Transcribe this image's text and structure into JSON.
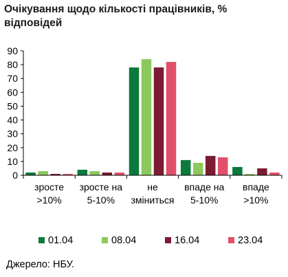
{
  "chart_data": {
    "type": "bar",
    "title": "Очікування щодо кількості працівників, % відповідей",
    "categories": [
      [
        "зросте",
        ">10%"
      ],
      [
        "зросте на",
        "5-10%"
      ],
      [
        "не",
        "зміниться"
      ],
      [
        "впаде на",
        "5-10%"
      ],
      [
        "впаде",
        ">10%"
      ]
    ],
    "series": [
      {
        "name": "01.04",
        "color": "#0b7a3b",
        "values": [
          2,
          4,
          78,
          11,
          6
        ]
      },
      {
        "name": "08.04",
        "color": "#8cc95c",
        "values": [
          3,
          3,
          84,
          9,
          1
        ]
      },
      {
        "name": "16.04",
        "color": "#7b1c33",
        "values": [
          1,
          2,
          78,
          14,
          5
        ]
      },
      {
        "name": "23.04",
        "color": "#e24f6b",
        "values": [
          1,
          2,
          82,
          13,
          2
        ]
      }
    ],
    "ylim": [
      0,
      90
    ],
    "yticks": [
      "0",
      "10",
      "20",
      "30",
      "40",
      "50",
      "60",
      "70",
      "80",
      "90"
    ],
    "xlabel": "",
    "ylabel": "",
    "grid": false,
    "legend_position": "bottom"
  },
  "source": "Джерело: НБУ."
}
